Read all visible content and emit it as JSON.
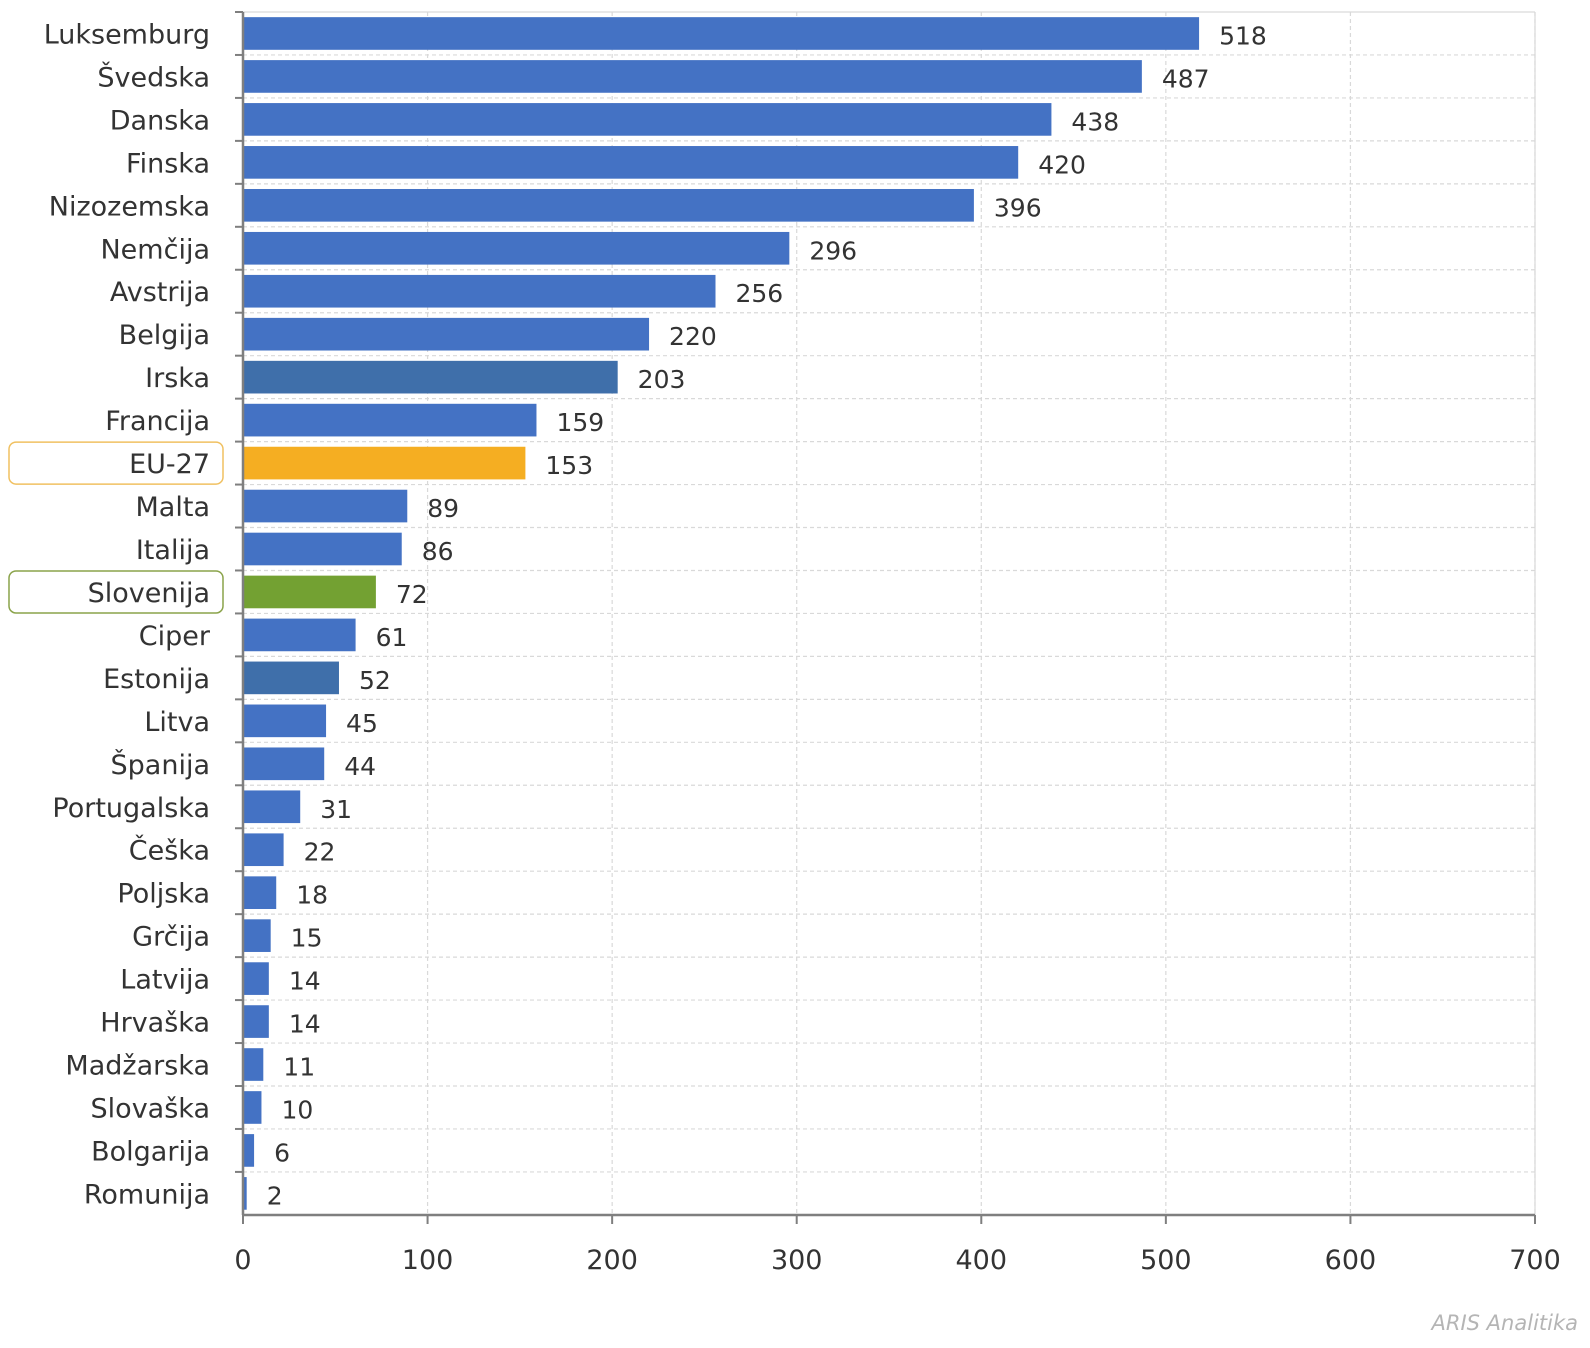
{
  "chart_data": {
    "type": "bar",
    "orientation": "horizontal",
    "categories": [
      "Luksemburg",
      "Švedska",
      "Danska",
      "Finska",
      "Nizozemska",
      "Nemčija",
      "Avstrija",
      "Belgija",
      "Irska",
      "Francija",
      "EU-27",
      "Malta",
      "Italija",
      "Slovenija",
      "Ciper",
      "Estonija",
      "Litva",
      "Španija",
      "Portugalska",
      "Češka",
      "Poljska",
      "Grčija",
      "Latvija",
      "Hrvaška",
      "Madžarska",
      "Slovaška",
      "Bolgarija",
      "Romunija"
    ],
    "values": [
      518,
      487,
      438,
      420,
      396,
      296,
      256,
      220,
      203,
      159,
      153,
      89,
      86,
      72,
      61,
      52,
      45,
      44,
      31,
      22,
      18,
      15,
      14,
      14,
      11,
      10,
      6,
      2
    ],
    "xlim": [
      0,
      700
    ],
    "xticks": [
      0,
      100,
      200,
      300,
      400,
      500,
      600,
      700
    ],
    "grid": true,
    "data_labels": true,
    "colors": {
      "default": "#4472C4",
      "darker": "#3F6FAA",
      "eu": "#F5AE22",
      "slovenia": "#73A132",
      "eu_outline": "#F0C060",
      "slovenia_outline": "#8AA34A",
      "axis": "#7f7f7f",
      "grid": "#d9d9d9"
    },
    "bar_color_keys": [
      "default",
      "default",
      "default",
      "default",
      "default",
      "default",
      "default",
      "default",
      "darker",
      "default",
      "eu",
      "default",
      "default",
      "slovenia",
      "default",
      "darker",
      "default",
      "default",
      "default",
      "default",
      "default",
      "default",
      "default",
      "default",
      "default",
      "default",
      "default",
      "default"
    ],
    "highlighted_categories": [
      "EU-27",
      "Slovenija"
    ]
  },
  "credit": "ARIS Analitika"
}
